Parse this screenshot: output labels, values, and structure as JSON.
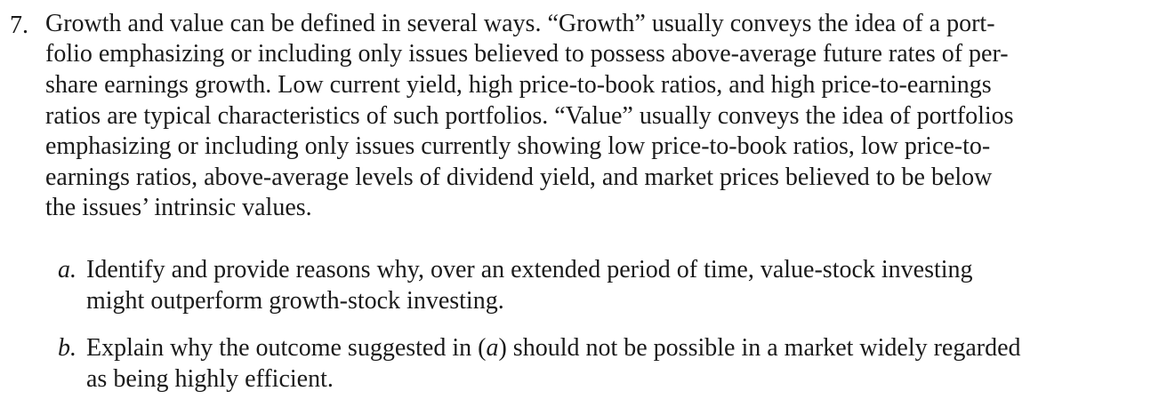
{
  "problem": {
    "number": "7.",
    "lines": [
      "Growth and value can be defined in several ways. “Growth” usually conveys the idea of a port-",
      "folio emphasizing or including only issues believed to possess above-average future rates of per-",
      "share earnings growth. Low current yield, high price-to-book ratios, and high price-to-earnings",
      "ratios are typical characteristics of such portfolios. “Value” usually conveys the idea of portfolios",
      "emphasizing or including only issues currently showing low price-to-book ratios, low price-to-",
      "earnings ratios, above-average levels of dividend yield, and market prices believed to be below",
      "the issues’ intrinsic values."
    ]
  },
  "parts": [
    {
      "label": "a.",
      "lines": [
        "Identify and provide reasons why, over an extended period of time, value-stock investing",
        "might outperform growth-stock investing."
      ]
    },
    {
      "label": "b.",
      "line1_prefix": "Explain why the outcome suggested in (",
      "line1_ref": "a",
      "line1_suffix": ") should not be possible in a market widely regarded",
      "line2": "as being highly efficient."
    }
  ]
}
